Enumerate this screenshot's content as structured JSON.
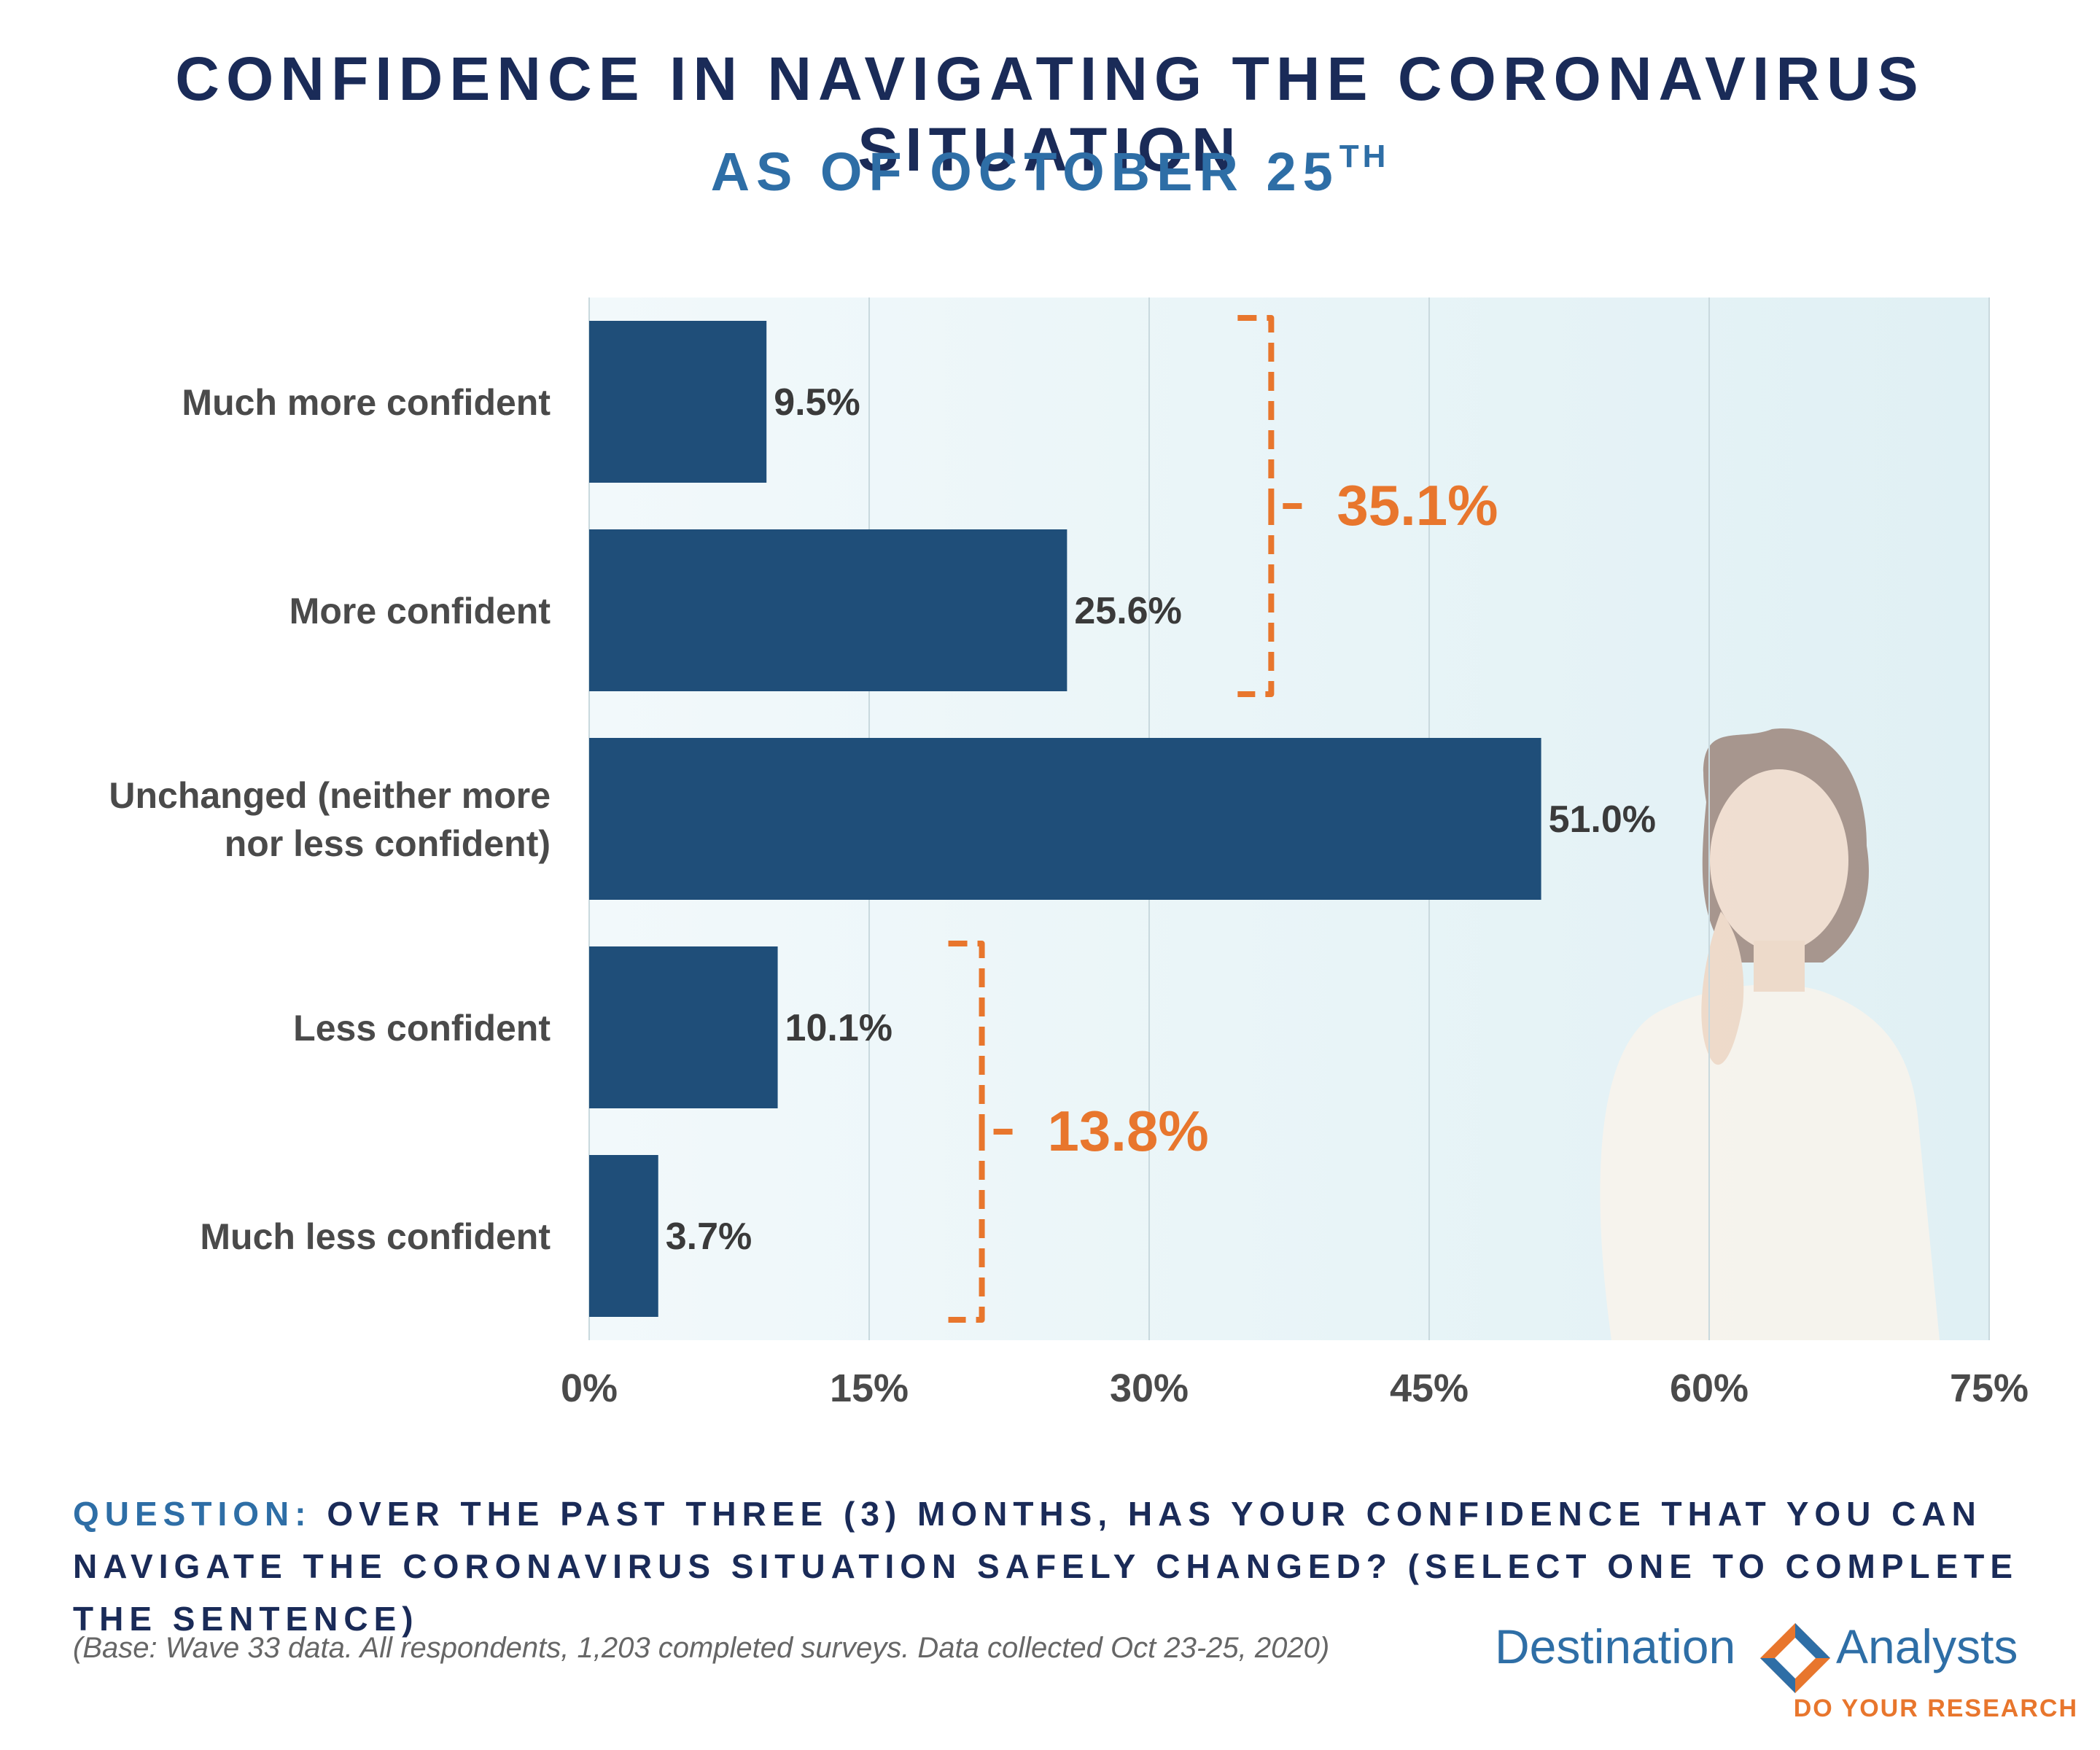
{
  "header": {
    "title": "CONFIDENCE IN NAVIGATING THE CORONAVIRUS SITUATION",
    "subtitle": "AS OF OCTOBER 25",
    "subtitle_suffix": "TH"
  },
  "chart_data": {
    "type": "bar",
    "orientation": "horizontal",
    "categories": [
      [
        "Much more confident"
      ],
      [
        "More confident"
      ],
      [
        "Unchanged (neither more",
        "nor less confident)"
      ],
      [
        "Less confident"
      ],
      [
        "Much less confident"
      ]
    ],
    "values": [
      9.5,
      25.6,
      51.0,
      10.1,
      3.7
    ],
    "value_labels": [
      "9.5%",
      "25.6%",
      "51.0%",
      "10.1%",
      "3.7%"
    ],
    "xlim": [
      0,
      75
    ],
    "xticks": [
      0,
      15,
      30,
      45,
      60,
      75
    ],
    "xtick_labels": [
      "0%",
      "15%",
      "30%",
      "45%",
      "60%",
      "75%"
    ],
    "grid": "vertical",
    "bar_color": "#1f4e79",
    "annotations": [
      {
        "label": "35.1%",
        "spans_categories": [
          0,
          1
        ],
        "color": "#e8762d"
      },
      {
        "label": "13.8%",
        "spans_categories": [
          3,
          4
        ],
        "color": "#e8762d"
      }
    ]
  },
  "footer": {
    "question_label": "QUESTION:",
    "question_text": "OVER THE PAST THREE (3) MONTHS, HAS YOUR CONFIDENCE THAT YOU CAN NAVIGATE THE CORONAVIRUS SITUATION SAFELY CHANGED? (SELECT ONE TO COMPLETE THE SENTENCE)",
    "base_note": "(Base: Wave 33 data. All respondents, 1,203 completed surveys. Data collected Oct 23-25, 2020)"
  },
  "logo": {
    "word_left": "Destination",
    "word_right": "Analysts",
    "tagline": "DO YOUR RESEARCH",
    "colors": {
      "blue": "#2e6ea6",
      "orange": "#e8762d"
    }
  }
}
